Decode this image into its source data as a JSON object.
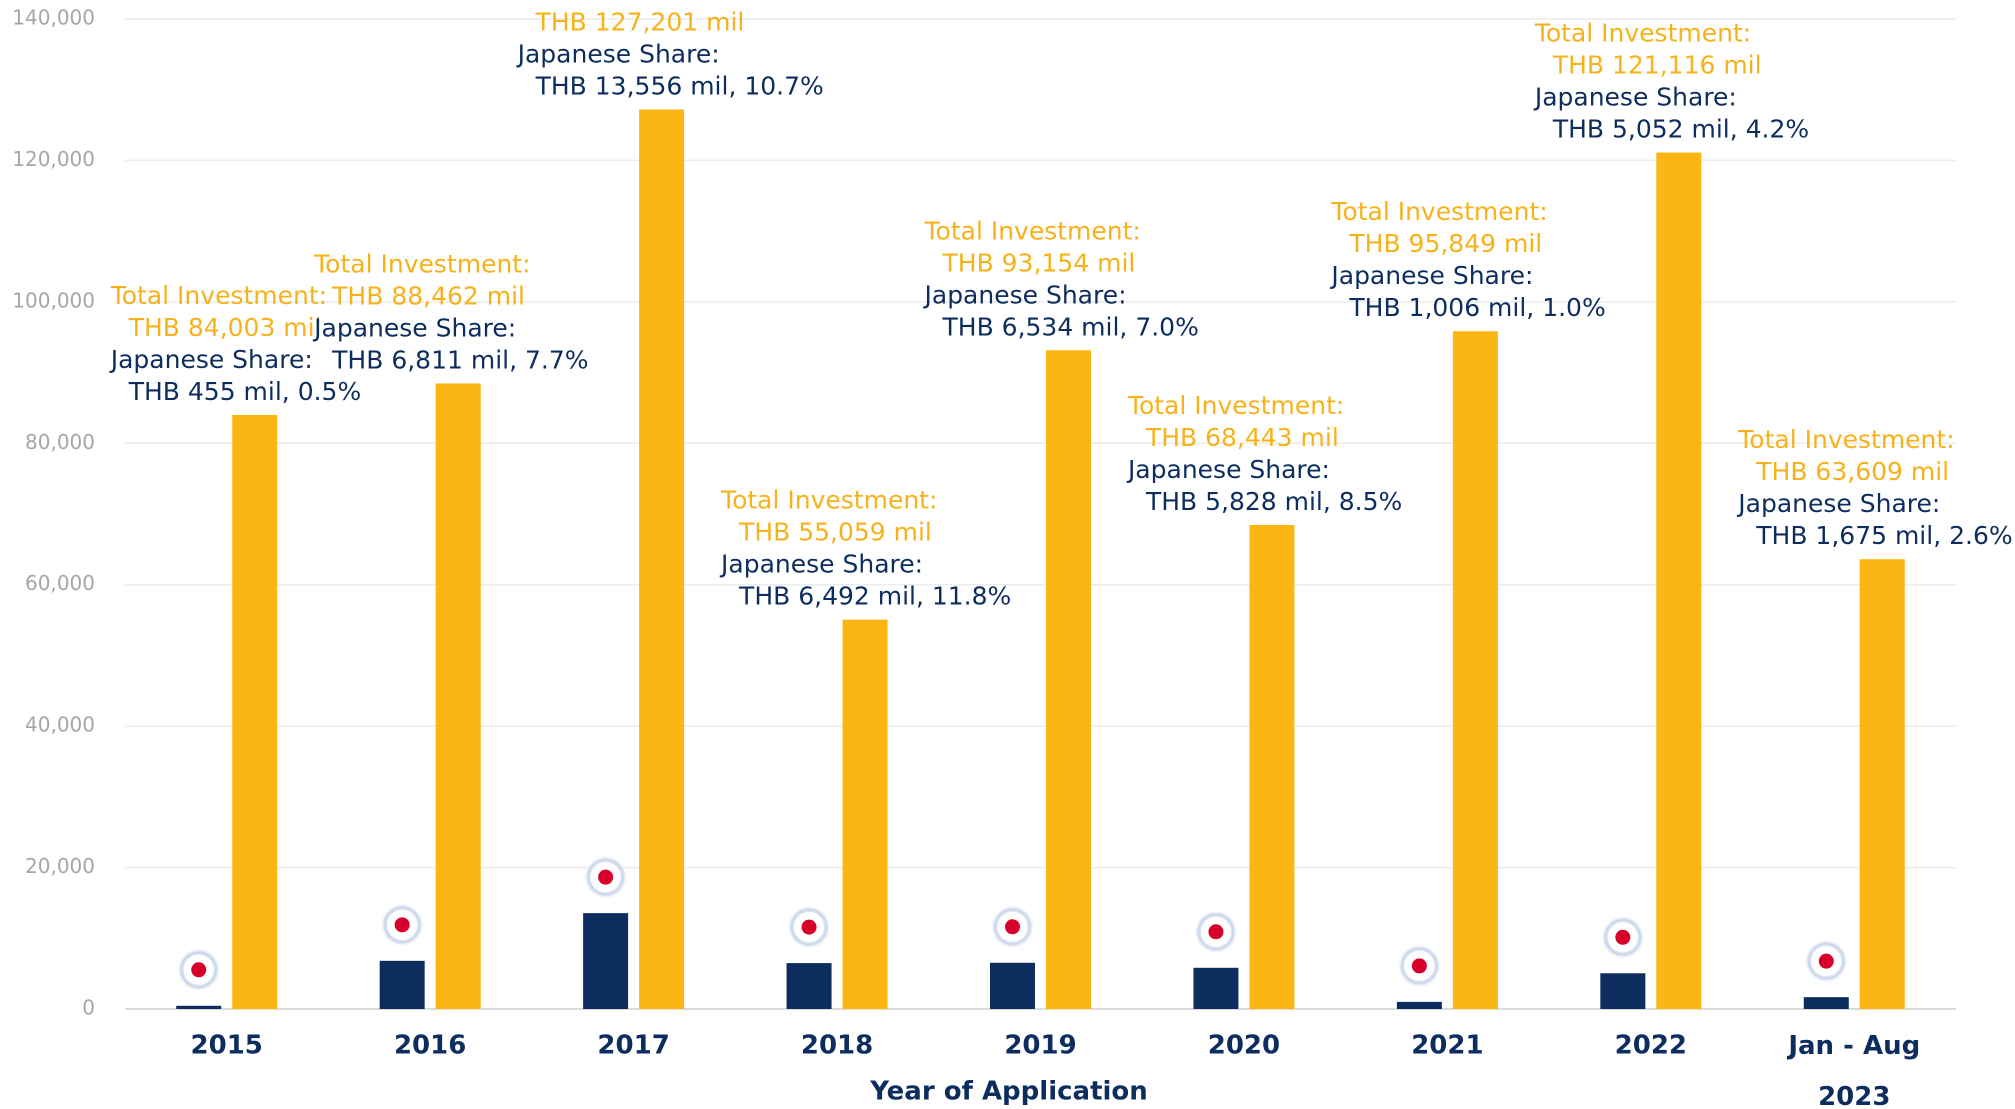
{
  "chart_data": {
    "type": "bar",
    "x_label": "Year of Application",
    "categories": [
      "2015",
      "2016",
      "2017",
      "2018",
      "2019",
      "2020",
      "2021",
      "2022",
      "Jan - Aug 2023"
    ],
    "total_label": "Total Investment:",
    "share_label": "Japanese Share:",
    "series": [
      {
        "name": "Japanese Share",
        "color": "#0d2d5e",
        "values": [
          455,
          6811,
          13556,
          6492,
          6534,
          5828,
          1006,
          5052,
          1675
        ],
        "value_labels": [
          "THB 455 mil, 0.5%",
          "THB 6,811 mil, 7.7%",
          "THB 13,556 mil, 10.7%",
          "THB 6,492 mil, 11.8%",
          "THB 6,534 mil, 7.0%",
          "THB 5,828 mil, 8.5%",
          "THB 1,006 mil, 1.0%",
          "THB 5,052 mil, 4.2%",
          "THB 1,675 mil, 2.6%"
        ]
      },
      {
        "name": "Total Investment",
        "color": "#fbb614",
        "values": [
          84003,
          88462,
          127201,
          55059,
          93154,
          68443,
          95849,
          121116,
          63609
        ],
        "value_labels": [
          "THB 84,003 mil",
          "THB 88,462 mil",
          "THB 127,201 mil",
          "THB 55,059 mil",
          "THB 93,154 mil",
          "THB 68,443 mil",
          "THB 95,849 mil",
          "THB 121,116 mil",
          "THB 63,609 mil"
        ]
      }
    ],
    "ylim": [
      0,
      140000
    ],
    "yticks": [
      0,
      {
        "value": 20000,
        "label": "20,000"
      },
      {
        "value": 40000,
        "label": "40,000"
      },
      {
        "value": 60000,
        "label": "60,000"
      },
      {
        "value": 80000,
        "label": "80,000"
      },
      {
        "value": 100000,
        "label": "100,000"
      },
      {
        "value": 120000,
        "label": "120,000"
      },
      {
        "value": 140000,
        "label": "140,000"
      }
    ],
    "grid": true
  }
}
